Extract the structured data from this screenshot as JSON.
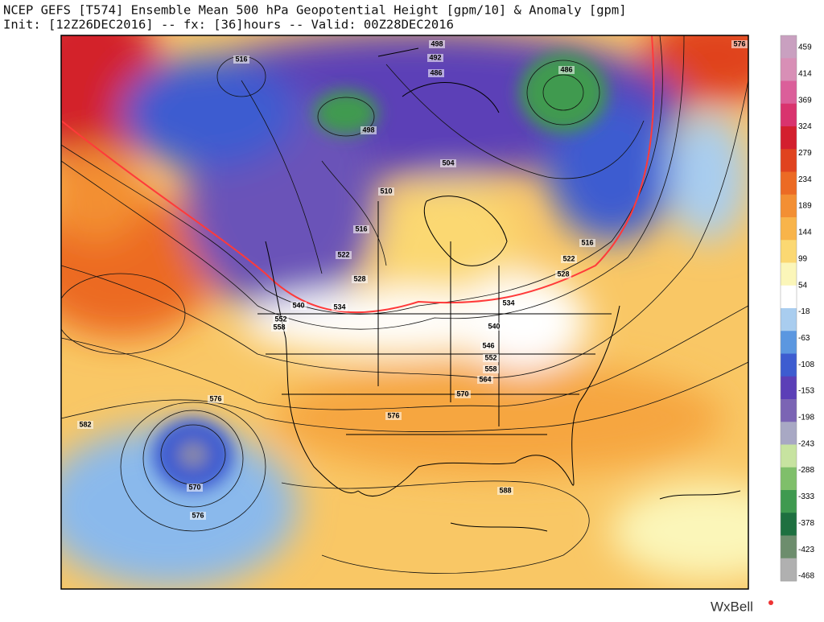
{
  "header": {
    "title": "NCEP GEFS [T574] Ensemble Mean 500 hPa Geopotential Height [gpm/10] & Anomaly [gpm]",
    "subtitle": "Init: [12Z26DEC2016] -- fx: [36]hours -- Valid: 00Z28DEC2016"
  },
  "contour_labels": [
    498,
    492,
    486,
    486,
    498,
    516,
    504,
    510,
    516,
    522,
    528,
    534,
    540,
    552,
    558,
    516,
    522,
    528,
    534,
    540,
    546,
    552,
    558,
    564,
    570,
    576,
    576,
    582,
    570,
    576,
    588,
    576
  ],
  "colorbar": {
    "ticks": [
      459,
      414,
      369,
      324,
      279,
      234,
      189,
      144,
      99,
      54,
      -18,
      -63,
      -108,
      -153,
      -198,
      -243,
      -288,
      -333,
      -378,
      -423,
      -468
    ],
    "colors": [
      "#c9a0c0",
      "#d88fb6",
      "#db5f9a",
      "#d9336e",
      "#d31f2e",
      "#e0431f",
      "#ec6a24",
      "#f38f33",
      "#f8b44a",
      "#fbd872",
      "#fbf6b9",
      "#ffffff",
      "#a9cdef",
      "#5b97e0",
      "#3d5cd0",
      "#5b3fb7",
      "#7b64b4",
      "#a8a8c4",
      "#c7e3a0",
      "#7fbf6a",
      "#3f9a50",
      "#1e7040",
      "#6d8d6d",
      "#b0b0b0"
    ]
  },
  "logo": "WxBell"
}
